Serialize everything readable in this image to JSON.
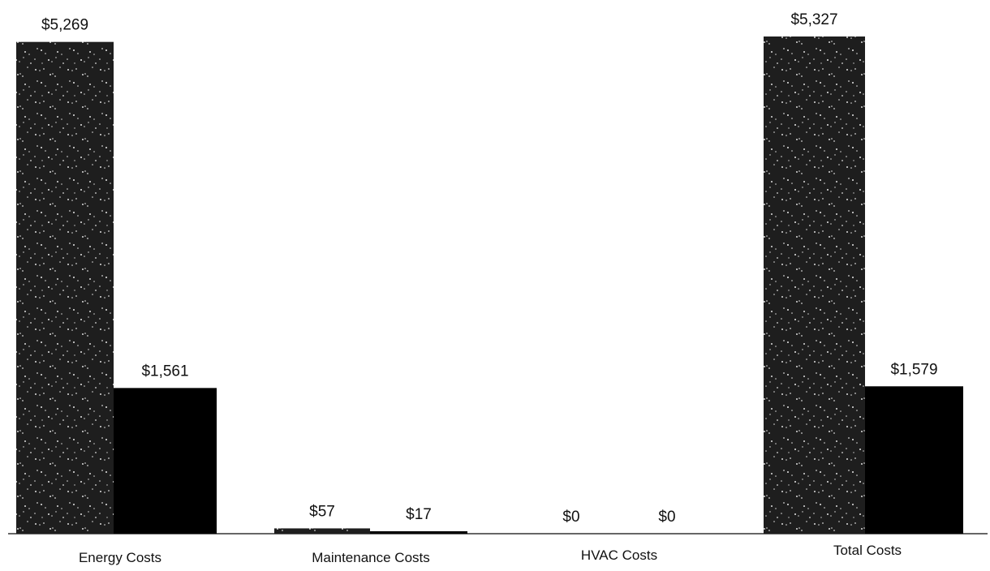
{
  "chart_data": {
    "type": "bar",
    "categories": [
      "Energy Costs",
      "Maintenance Costs",
      "HVAC Costs",
      "Total Costs"
    ],
    "series": [
      {
        "values": [
          5269,
          57,
          0,
          5327
        ],
        "labels": [
          "$5,269",
          "$57",
          "$0",
          "$5,327"
        ],
        "pattern": "speckled-dark"
      },
      {
        "values": [
          1561,
          17,
          0,
          1579
        ],
        "labels": [
          "$1,561",
          "$17",
          "$0",
          "$1,579"
        ],
        "pattern": "solid-black"
      }
    ],
    "ylim": [
      0,
      5327
    ],
    "grid": false,
    "legend": "none",
    "colors": {
      "series_1_fill": "#1e1e1e",
      "series_1_speckle": "#dcdcdc",
      "series_2_fill": "#000000",
      "axis": "#333333"
    }
  }
}
